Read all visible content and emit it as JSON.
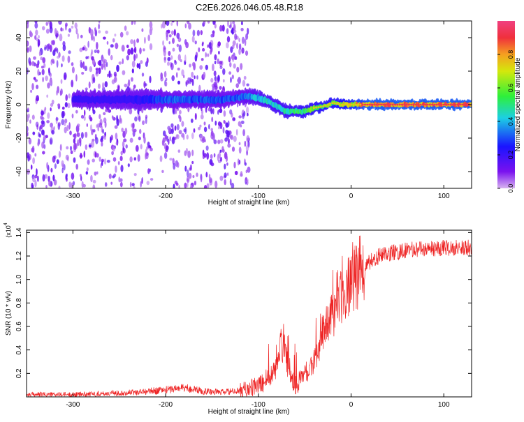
{
  "title": "C2E6.2026.046.05.48.R18",
  "colors": {
    "snr_line": "#ee2222",
    "colorbar_stops": [
      "#d8b4f0",
      "#7a12ef",
      "#1a14ff",
      "#1ccfe4",
      "#2ef03a",
      "#d4e80c",
      "#f5a020",
      "#f0303c",
      "#f04080"
    ]
  },
  "chart_data": [
    {
      "type": "heatmap",
      "name": "spectrogram",
      "xlabel": "Height of straight line (km)",
      "ylabel": "Frequency (Hz)",
      "xlim": [
        -350,
        130
      ],
      "ylim": [
        -50,
        50
      ],
      "x_ticks": [
        -300,
        -200,
        -100,
        0,
        100
      ],
      "x_tick_labels": [
        "-300",
        "-200",
        "-100",
        "0",
        "100"
      ],
      "y_ticks": [
        -40,
        -20,
        0,
        20,
        40
      ],
      "y_tick_labels": [
        "-40",
        "-20",
        "0",
        "20",
        "40"
      ],
      "colorbar": {
        "label": "Normalized spectral amplitude",
        "range": [
          0,
          1
        ],
        "ticks": [
          0.0,
          0.2,
          0.4,
          0.6,
          0.8
        ],
        "tick_labels": [
          "0.0",
          "0.2",
          "0.4",
          "0.6",
          "0.8"
        ]
      },
      "noise_regions": [
        {
          "x_range": [
            -350,
            -215
          ],
          "density": 0.8
        },
        {
          "x_range": [
            -205,
            -110
          ],
          "density": 0.6
        }
      ],
      "trace": [
        {
          "x": -285,
          "freq": 3,
          "amp": 0.2,
          "width": 8
        },
        {
          "x": -250,
          "freq": 3,
          "amp": 0.2,
          "width": 9
        },
        {
          "x": -220,
          "freq": 3,
          "amp": 0.25,
          "width": 10
        },
        {
          "x": -200,
          "freq": 3,
          "amp": 0.35,
          "width": 8
        },
        {
          "x": -170,
          "freq": 3,
          "amp": 0.33,
          "width": 8
        },
        {
          "x": -140,
          "freq": 3,
          "amp": 0.33,
          "width": 8
        },
        {
          "x": -125,
          "freq": 4,
          "amp": 0.33,
          "width": 7
        },
        {
          "x": -110,
          "freq": 5,
          "amp": 0.38,
          "width": 7
        },
        {
          "x": -100,
          "freq": 4,
          "amp": 0.45,
          "width": 7
        },
        {
          "x": -90,
          "freq": 2,
          "amp": 0.48,
          "width": 6
        },
        {
          "x": -80,
          "freq": -1,
          "amp": 0.5,
          "width": 6
        },
        {
          "x": -70,
          "freq": -4,
          "amp": 0.52,
          "width": 6
        },
        {
          "x": -60,
          "freq": -4,
          "amp": 0.55,
          "width": 5
        },
        {
          "x": -50,
          "freq": -4,
          "amp": 0.58,
          "width": 5
        },
        {
          "x": -40,
          "freq": -2,
          "amp": 0.62,
          "width": 5
        },
        {
          "x": -30,
          "freq": -1,
          "amp": 0.64,
          "width": 4
        },
        {
          "x": -20,
          "freq": 1,
          "amp": 0.65,
          "width": 4
        },
        {
          "x": -10,
          "freq": 0,
          "amp": 0.7,
          "width": 4
        },
        {
          "x": 0,
          "freq": 0,
          "amp": 0.78,
          "width": 4
        },
        {
          "x": 20,
          "freq": 0,
          "amp": 0.9,
          "width": 4
        },
        {
          "x": 60,
          "freq": 0,
          "amp": 0.9,
          "width": 4
        },
        {
          "x": 100,
          "freq": 0,
          "amp": 0.9,
          "width": 4
        },
        {
          "x": 130,
          "freq": 0,
          "amp": 0.9,
          "width": 4
        }
      ]
    },
    {
      "type": "line",
      "name": "snr",
      "xlabel": "Height of straight line (km)",
      "ylabel": "SNR (10 * v/v)",
      "multiplier_label": "(x10",
      "multiplier_exponent": "4",
      "xlim": [
        -350,
        130
      ],
      "ylim": [
        0,
        1.42
      ],
      "x_ticks": [
        -300,
        -200,
        -100,
        0,
        100
      ],
      "x_tick_labels": [
        "-300",
        "-200",
        "-100",
        "0",
        "100"
      ],
      "y_ticks": [
        0.2,
        0.4,
        0.6,
        0.8,
        1.0,
        1.2,
        1.4
      ],
      "y_tick_labels": [
        "0.2",
        "0.4",
        "0.6",
        "0.8",
        "1.0",
        "1.2",
        "1.4"
      ],
      "series": [
        {
          "name": "SNR",
          "x": [
            -350,
            -300,
            -260,
            -230,
            -200,
            -180,
            -160,
            -140,
            -120,
            -105,
            -95,
            -88,
            -80,
            -75,
            -70,
            -65,
            -60,
            -55,
            -50,
            -45,
            -40,
            -35,
            -30,
            -25,
            -20,
            -15,
            -10,
            -5,
            0,
            5,
            10,
            15,
            20,
            30,
            40,
            60,
            80,
            100,
            130
          ],
          "values": [
            0.02,
            0.02,
            0.03,
            0.04,
            0.06,
            0.08,
            0.05,
            0.04,
            0.05,
            0.08,
            0.12,
            0.2,
            0.25,
            0.45,
            0.35,
            0.15,
            0.1,
            0.14,
            0.18,
            0.2,
            0.3,
            0.45,
            0.55,
            0.6,
            0.7,
            0.8,
            0.88,
            0.92,
            0.95,
            1.0,
            1.05,
            1.1,
            1.15,
            1.2,
            1.22,
            1.25,
            1.26,
            1.27,
            1.27
          ]
        }
      ]
    }
  ]
}
